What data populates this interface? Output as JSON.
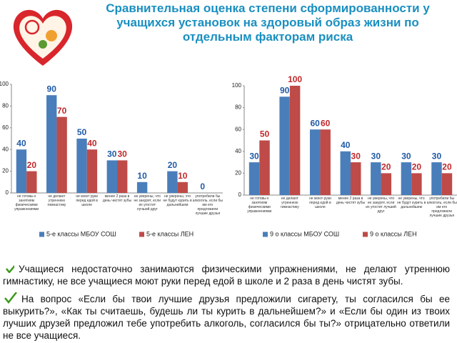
{
  "title": "Сравнительная оценка степени сформированности у учащихся установок на здоровый образ жизни по отдельным факторам риска",
  "bullets": [
    "Учащиеся недостаточно занимаются физическими упражнениями, не делают утреннюю гимнастику, не все учащиеся моют руки перед едой в школе и 2 раза в день чистят зубы.",
    "На вопрос «Если бы твои лучшие друзья предложили сигарету, ты согласился бы ее выкурить?», «Как ты считаешь, будешь ли ты курить в дальнейшем?» и «Если бы один из твоих лучших друзей предложил тебе употребить алкоголь, согласился бы ты?» отрицательно ответили не все учащиеся."
  ],
  "chart_data": [
    {
      "type": "bar",
      "categories": [
        "не готовы к занятиям физическими упражнениями",
        "не делают утреннюю гимнастику",
        "не моют руки перед едой в школе",
        "менее 2 раза в день чистят зубы",
        "не уверены, что не закурят, если их угостит лучший друг",
        "не уверены, что не будут курить в дальнейшем",
        "употребили бы алкоголь, если бы им его предложили лучшие друзья"
      ],
      "series": [
        {
          "name": "5-е классы МБОУ СОШ",
          "color": "#4a7ebb",
          "values": [
            40,
            90,
            50,
            30,
            10,
            20,
            0
          ]
        },
        {
          "name": "5-е классы ЛЕН",
          "color": "#be4b48",
          "values": [
            20,
            70,
            40,
            30,
            null,
            10,
            null
          ]
        }
      ],
      "ylim": [
        0,
        100
      ],
      "yticks": [
        0,
        20,
        40,
        60,
        80,
        100
      ]
    },
    {
      "type": "bar",
      "categories": [
        "не готовы к занятиям физическими упражнениями",
        "не делают утреннюю гимнастику",
        "не моют руки перед едой в школе",
        "менее 2 раза в день чистят зубы",
        "не уверены, что не закурят, если их угостит лучший друг",
        "не уверены, что не будут курить в дальнейшем",
        "употребили бы алкоголь, если бы им его предложили лучшие друзья"
      ],
      "series": [
        {
          "name": "9 о классы МБОУ СОШ",
          "color": "#4a7ebb",
          "values": [
            30,
            90,
            60,
            40,
            30,
            30,
            30
          ]
        },
        {
          "name": "9 о классы ЛЕН",
          "color": "#be4b48",
          "values": [
            50,
            100,
            60,
            30,
            20,
            20,
            20
          ]
        }
      ],
      "ylim": [
        0,
        100
      ],
      "yticks": [
        0,
        20,
        40,
        60,
        80,
        100
      ]
    }
  ]
}
